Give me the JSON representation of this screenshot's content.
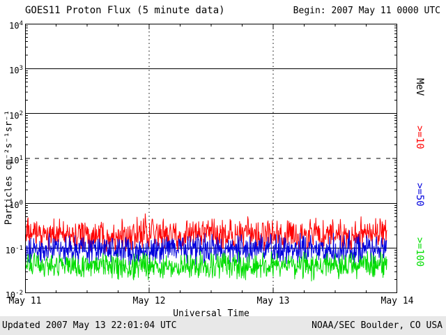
{
  "page": {
    "background": "#ffffff",
    "footer_background": "#e8e8e8"
  },
  "header": {
    "title": "GOES11 Proton Flux (5 minute data)",
    "begin_label": "Begin: 2007 May 11 0000 UTC"
  },
  "footer": {
    "updated": "Updated 2007 May 13 22:01:04 UTC",
    "credit": "NOAA/SEC Boulder, CO USA"
  },
  "chart_data": {
    "type": "line",
    "title": "GOES11 Proton Flux (5 minute data)",
    "xlabel": "Universal Time",
    "ylabel": "Particles cm⁻²s⁻¹sr⁻¹",
    "right_axis_label": "MeV",
    "x_ticks": [
      "May 11",
      "May 12",
      "May 13",
      "May 14"
    ],
    "x_days": 3,
    "y_scale": "log",
    "y_exponents": [
      4,
      3,
      2,
      1,
      0,
      -1,
      -2
    ],
    "ylim": [
      0.01,
      10000
    ],
    "grid": {
      "solid_decades": [
        3,
        2,
        0,
        -1
      ],
      "dashed_decades": [
        1
      ],
      "vertical_dotted_days": [
        1,
        2
      ]
    },
    "cadence_minutes": 5,
    "data_end_day_frac": 2.92,
    "series": [
      {
        "name": ">=10",
        "threshold_mev": 10,
        "color": "#ff0000",
        "median_flux": 0.2,
        "log10_median": -0.7,
        "log10_amp": 0.42,
        "flux_range": [
          0.08,
          0.55
        ]
      },
      {
        "name": ">=50",
        "threshold_mev": 50,
        "color": "#0000dd",
        "median_flux": 0.095,
        "log10_median": -1.02,
        "log10_amp": 0.38,
        "flux_range": [
          0.04,
          0.23
        ]
      },
      {
        "name": ">=100",
        "threshold_mev": 100,
        "color": "#00dd00",
        "median_flux": 0.04,
        "log10_median": -1.4,
        "log10_amp": 0.35,
        "flux_range": [
          0.018,
          0.09
        ]
      }
    ]
  }
}
